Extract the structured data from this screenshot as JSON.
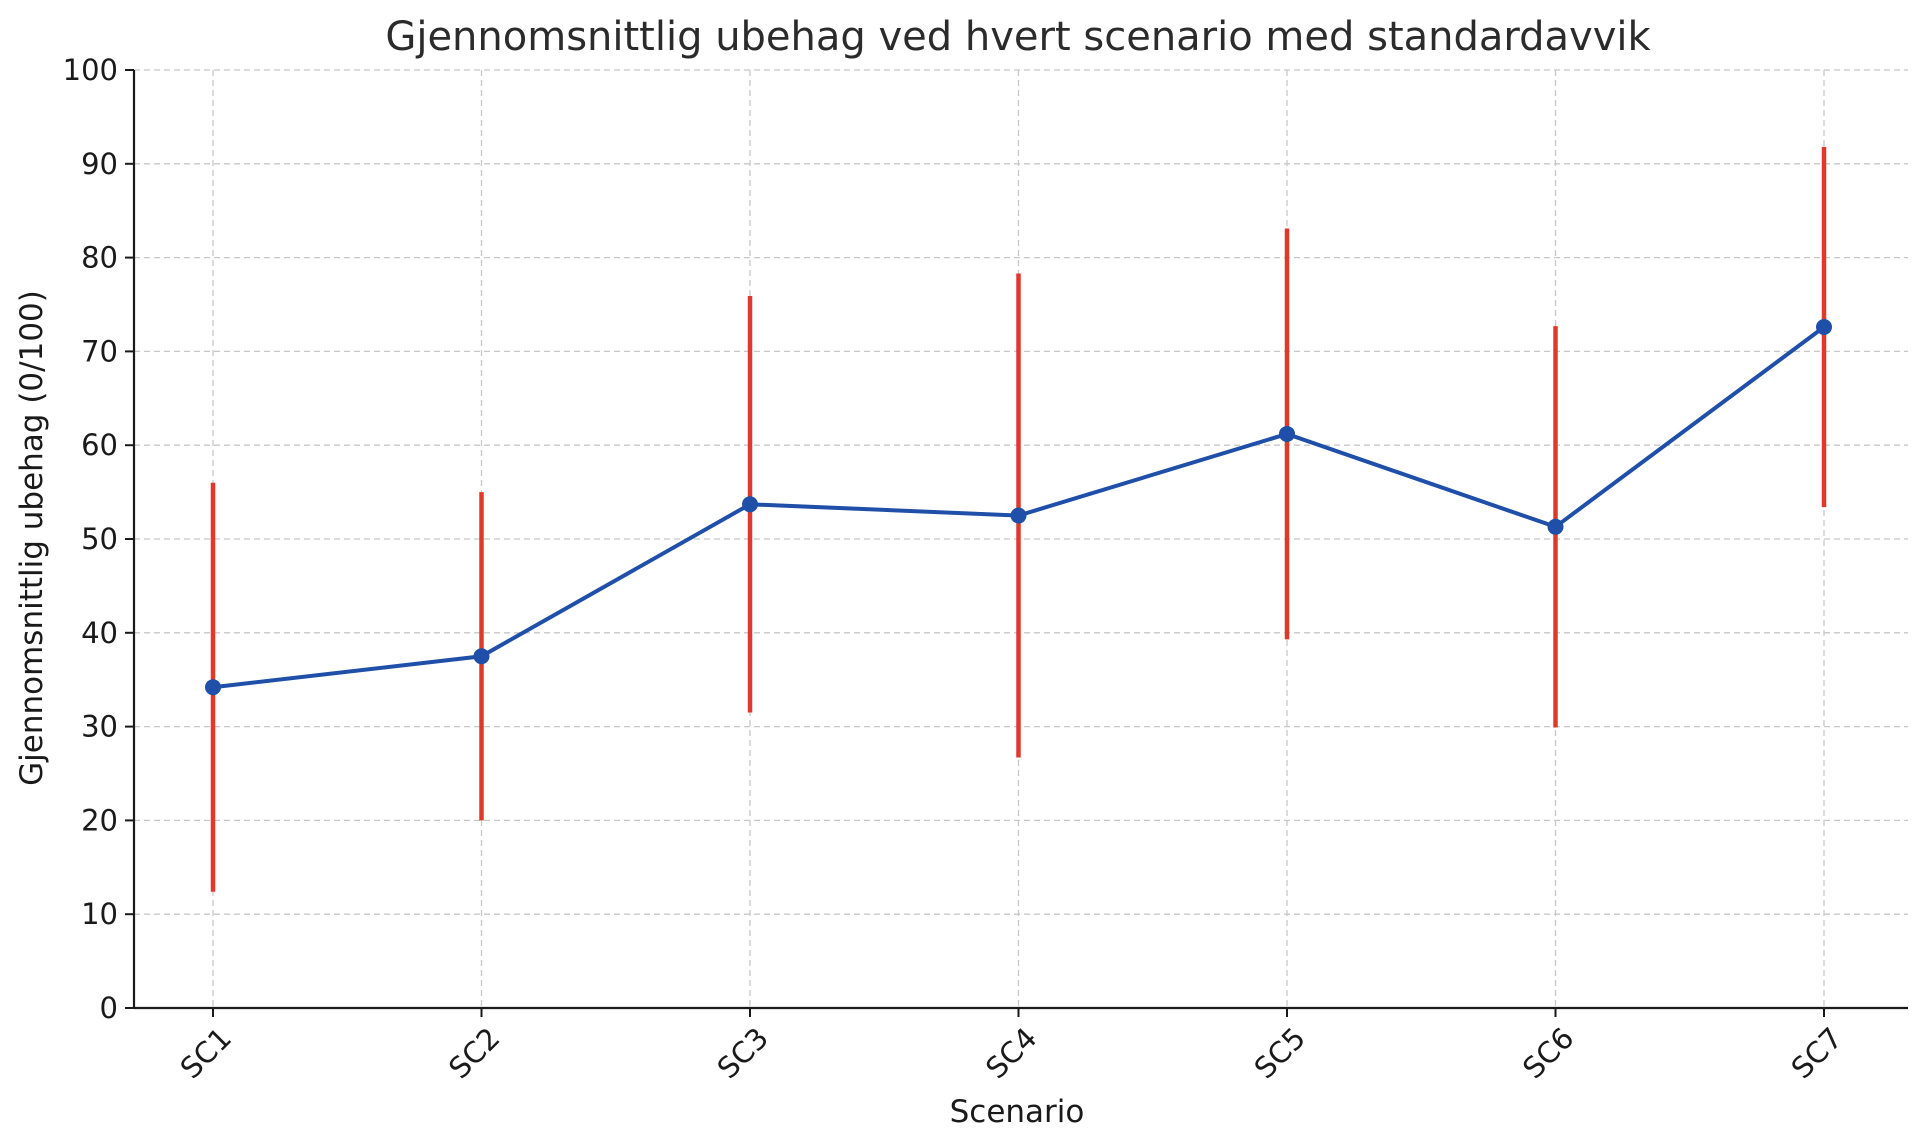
{
  "chart_data": {
    "type": "line",
    "title": "Gjennomsnittlig ubehag ved hvert scenario med standardavvik",
    "xlabel": "Scenario",
    "ylabel": "Gjennomsnittlig ubehag (0/100)",
    "categories": [
      "SC1",
      "SC2",
      "SC3",
      "SC4",
      "SC5",
      "SC6",
      "SC7"
    ],
    "ylim": [
      0,
      100
    ],
    "yticks": [
      "0",
      "10",
      "20",
      "30",
      "40",
      "50",
      "60",
      "70",
      "80",
      "90",
      "100"
    ],
    "grid": true,
    "series": [
      {
        "values": [
          34.2,
          37.5,
          53.7,
          52.5,
          61.2,
          51.3,
          72.6
        ],
        "error": [
          21.8,
          17.5,
          22.2,
          25.8,
          21.9,
          21.4,
          19.2
        ],
        "color": "#1f4fa8",
        "error_color": "#e0392b"
      }
    ]
  }
}
